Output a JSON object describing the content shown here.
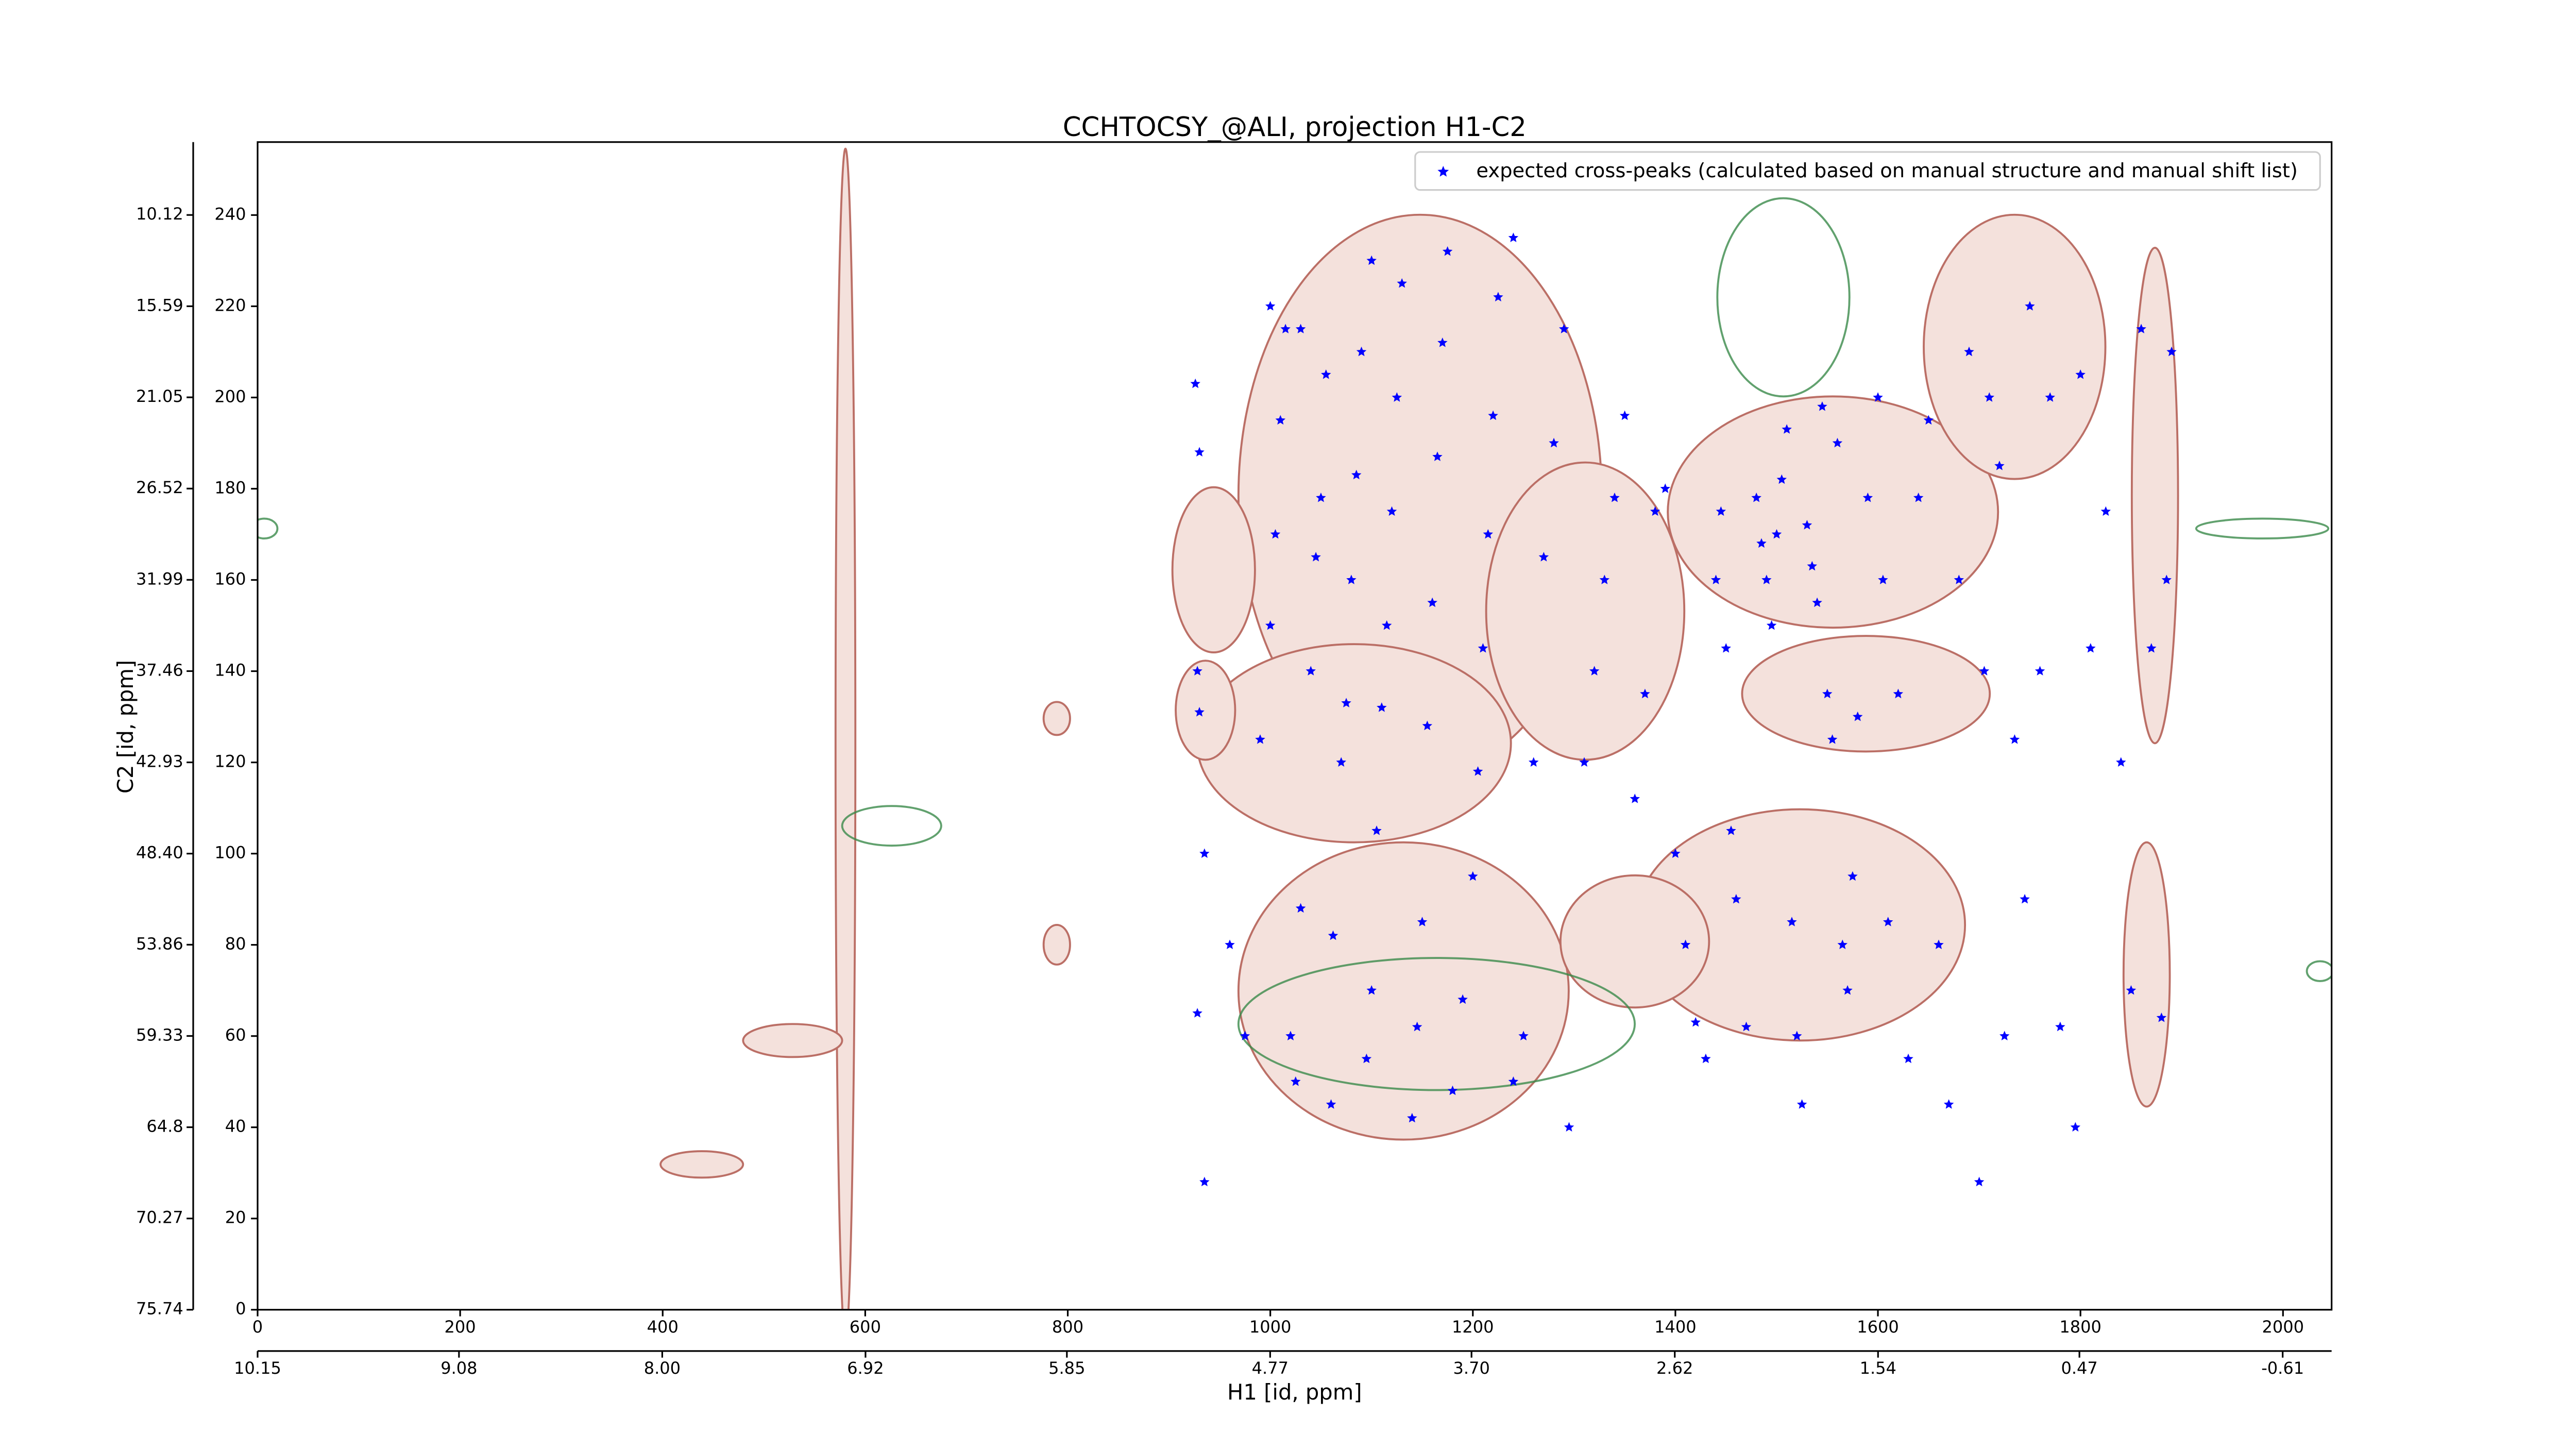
{
  "chart_data": {
    "type": "scatter",
    "title": "CCHTOCSY_@ALI, projection H1-C2",
    "xlabel": "H1 [id, ppm]",
    "ylabel": "C2 [id, ppm]",
    "xlim": [
      0,
      2048
    ],
    "xticks": [
      0,
      200,
      400,
      600,
      800,
      1000,
      1200,
      1400,
      1600,
      1800,
      2000
    ],
    "ylim": [
      0,
      256
    ],
    "yticks": [
      0,
      20,
      40,
      60,
      80,
      100,
      120,
      140,
      160,
      180,
      200,
      220,
      240
    ],
    "x2lim": [
      10.15,
      -0.87
    ],
    "x2ticks": [
      10.15,
      9.08,
      {
        "value": 8,
        "label": "8.00"
      },
      6.92,
      5.85,
      4.77,
      {
        "value": 3.7,
        "label": "3.70"
      },
      2.62,
      1.54,
      0.47,
      -0.61
    ],
    "y2lim": [
      75.74,
      5.75
    ],
    "y2ticks": [
      75.74,
      70.27,
      64.8,
      59.33,
      53.86,
      {
        "value": 48.4,
        "label": "48.40"
      },
      42.93,
      37.46,
      31.99,
      26.52,
      21.05,
      15.59,
      10.12
    ],
    "legend": "upper right",
    "series": [
      {
        "name": "expected cross-peaks (calculated based on manual structure and manual shift list)",
        "color": "#0000ff",
        "x": [
          926,
          930,
          928,
          930,
          935,
          928,
          935,
          960,
          975,
          990,
          1000,
          1005,
          1010,
          1015,
          1020,
          1025,
          1030,
          1040,
          1045,
          1050,
          1055,
          1060,
          1062,
          1070,
          1075,
          1080,
          1085,
          1090,
          1095,
          1100,
          1105,
          1110,
          1115,
          1120,
          1125,
          1130,
          1140,
          1145,
          1150,
          1155,
          1160,
          1165,
          1170,
          1175,
          1180,
          1190,
          1200,
          1205,
          1210,
          1215,
          1220,
          1225,
          1240,
          1250,
          1260,
          1270,
          1280,
          1290,
          1295,
          1310,
          1320,
          1330,
          1340,
          1350,
          1360,
          1370,
          1380,
          1390,
          1400,
          1410,
          1420,
          1430,
          1440,
          1445,
          1450,
          1455,
          1460,
          1470,
          1480,
          1485,
          1490,
          1495,
          1500,
          1505,
          1510,
          1515,
          1520,
          1525,
          1530,
          1535,
          1540,
          1545,
          1550,
          1555,
          1560,
          1565,
          1570,
          1575,
          1580,
          1590,
          1600,
          1605,
          1610,
          1620,
          1630,
          1640,
          1650,
          1660,
          1670,
          1680,
          1690,
          1700,
          1705,
          1710,
          1720,
          1725,
          1735,
          1745,
          1750,
          1760,
          1770,
          1780,
          1795,
          1800,
          1810,
          1825,
          1840,
          1850,
          1860,
          1870,
          1880,
          1890,
          1885,
          1240,
          1100,
          1030,
          1000
        ],
        "y": [
          203,
          188,
          140,
          131,
          100,
          65,
          28,
          80,
          60,
          125,
          150,
          170,
          195,
          215,
          60,
          50,
          88,
          140,
          165,
          178,
          205,
          45,
          82,
          120,
          133,
          160,
          183,
          210,
          55,
          70,
          105,
          132,
          150,
          175,
          200,
          225,
          42,
          62,
          85,
          128,
          155,
          187,
          212,
          232,
          48,
          68,
          95,
          118,
          145,
          170,
          196,
          222,
          50,
          60,
          120,
          165,
          190,
          215,
          40,
          120,
          140,
          160,
          178,
          196,
          112,
          135,
          175,
          180,
          100,
          80,
          63,
          55,
          160,
          175,
          145,
          105,
          90,
          62,
          178,
          168,
          160,
          150,
          170,
          182,
          193,
          85,
          60,
          45,
          172,
          163,
          155,
          198,
          135,
          125,
          190,
          80,
          70,
          95,
          130,
          178,
          200,
          160,
          85,
          135,
          55,
          178,
          195,
          80,
          45,
          160,
          210,
          28,
          140,
          200,
          185,
          60,
          125,
          90,
          220,
          140,
          200,
          62,
          40,
          205,
          145,
          175,
          120,
          70,
          215,
          145,
          64,
          210,
          160,
          235,
          230,
          215,
          220
        ]
      }
    ]
  }
}
